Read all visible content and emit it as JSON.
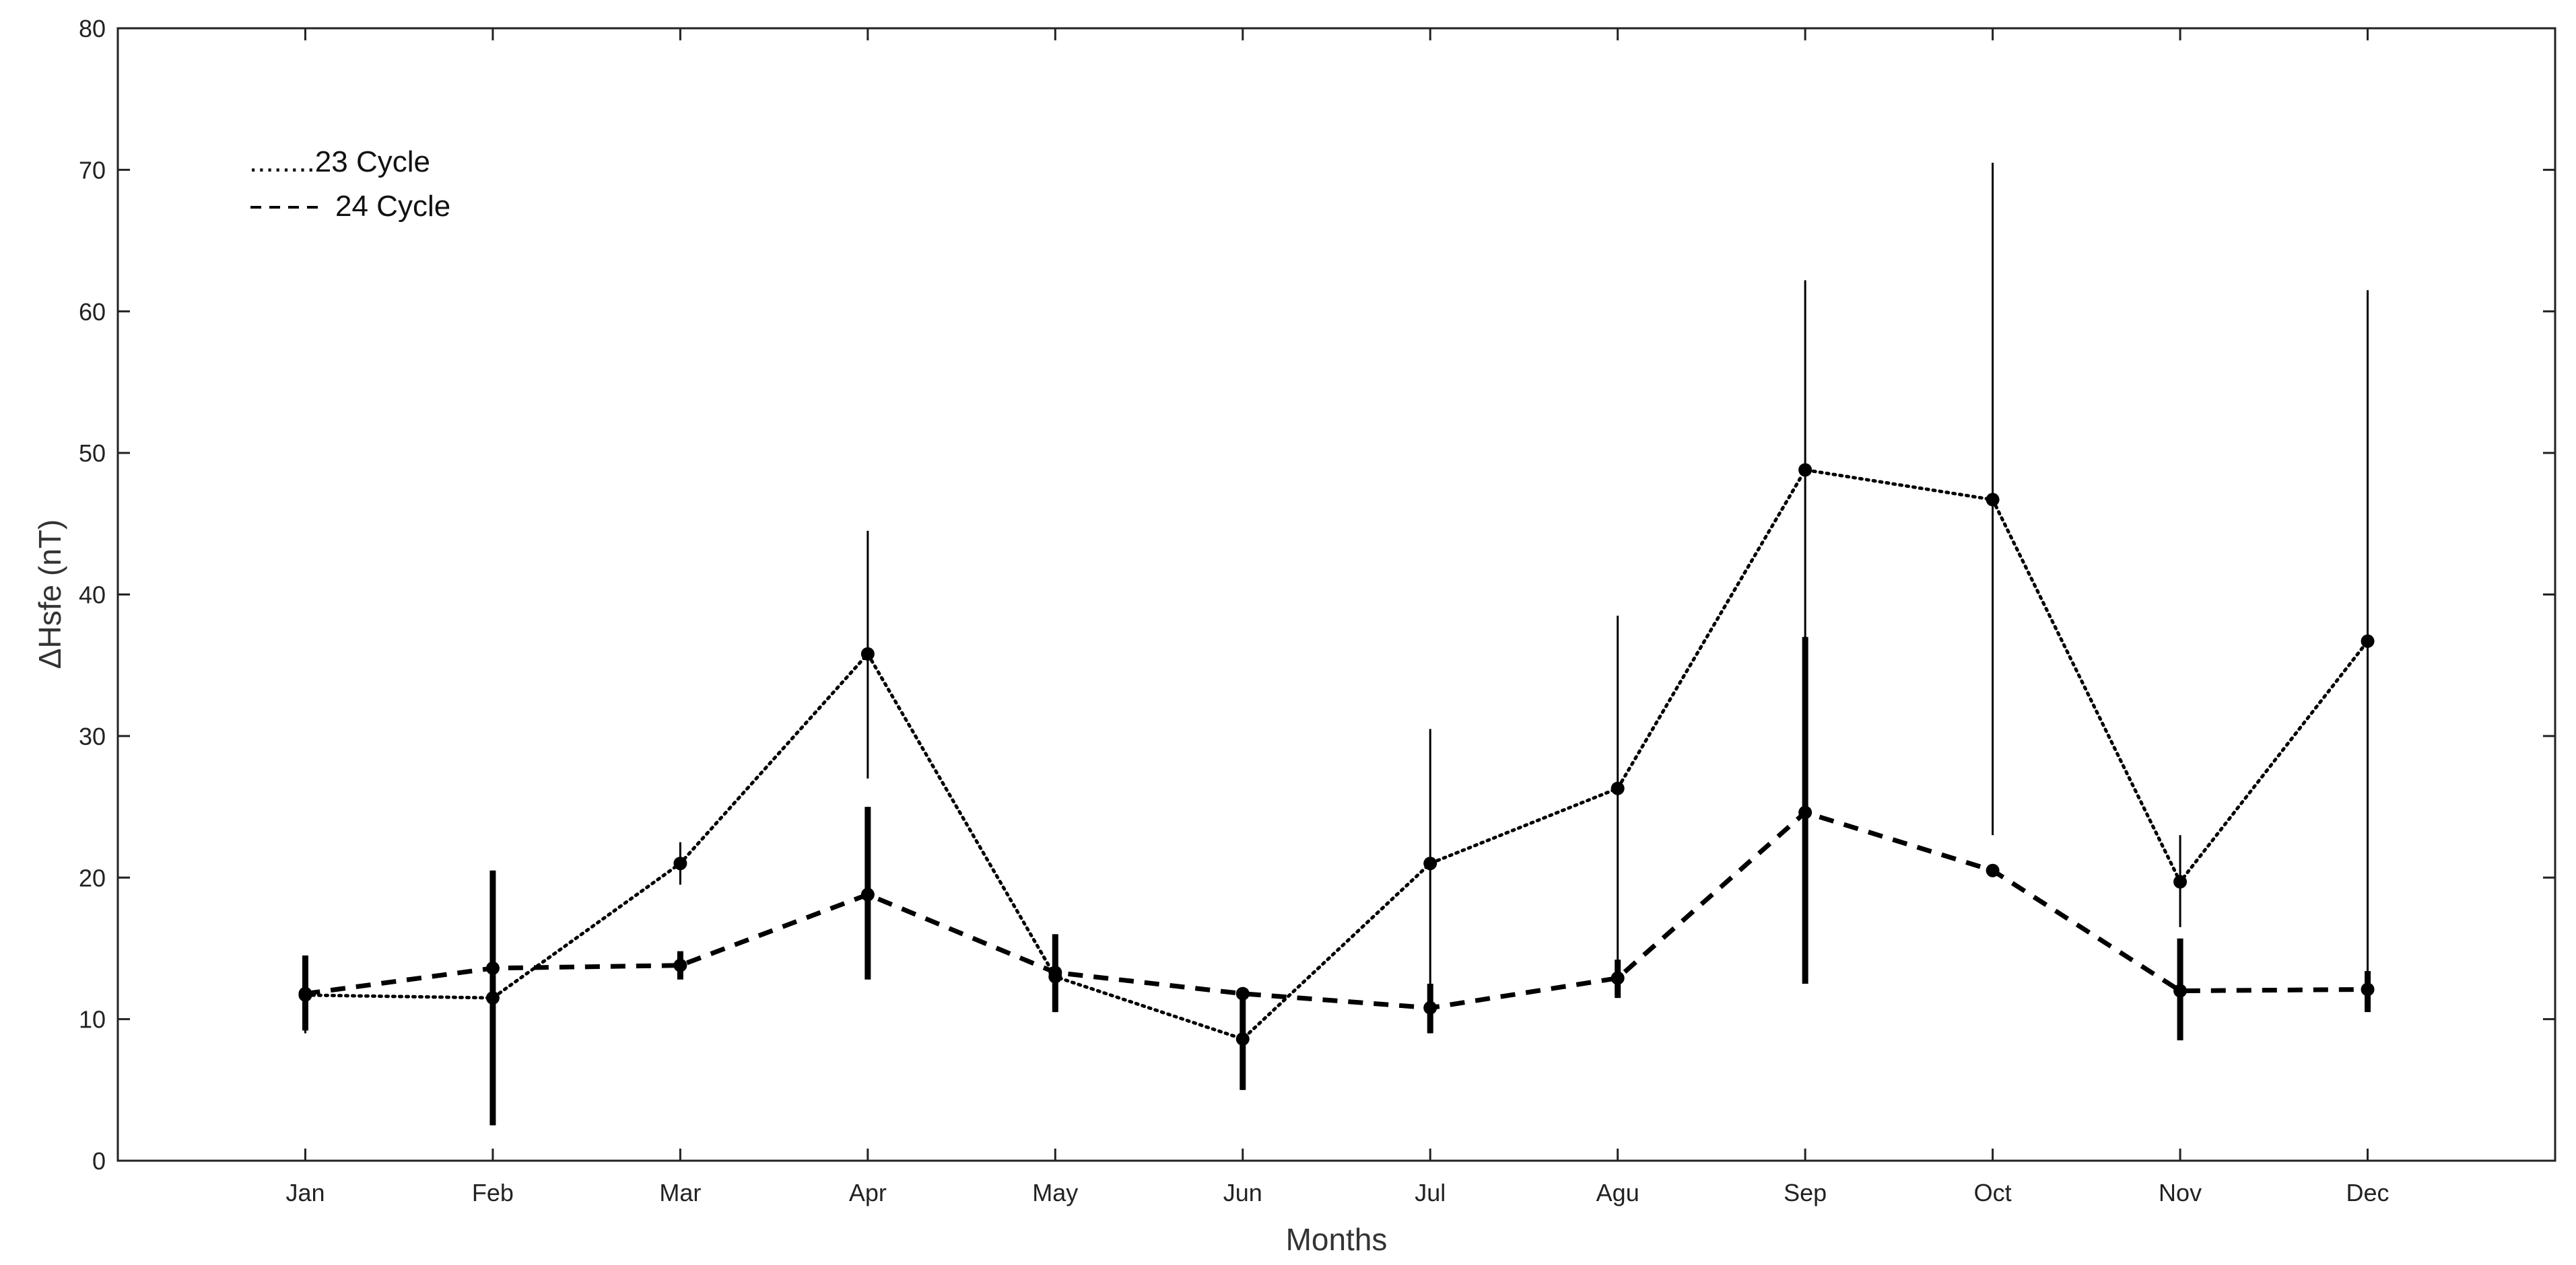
{
  "chart_data": {
    "type": "line",
    "title": "",
    "xlabel": "Months",
    "ylabel": "ΔHsfe  (nT)",
    "ylim": [
      0,
      80
    ],
    "yticks": [
      0,
      10,
      20,
      30,
      40,
      50,
      60,
      70,
      80
    ],
    "categories": [
      "Jan",
      "Feb",
      "Mar",
      "Apr",
      "May",
      "Jun",
      "Jul",
      "Agu",
      "Sep",
      "Oct",
      "Nov",
      "Dec"
    ],
    "grid": false,
    "legend_position": "top-left",
    "series": [
      {
        "name": "23 Cycle",
        "legend_label": "........23 Cycle",
        "style": "dotted",
        "color": "#000000",
        "values": [
          11.7,
          11.5,
          21.0,
          35.8,
          13.0,
          8.6,
          21.0,
          26.3,
          48.8,
          46.7,
          19.7,
          36.7
        ],
        "err_low": [
          9.0,
          2.5,
          19.5,
          27.0,
          10.5,
          5.0,
          9.0,
          11.5,
          12.5,
          23.0,
          16.5,
          12.0
        ],
        "err_high": [
          14.5,
          20.5,
          22.5,
          44.5,
          16.0,
          12.0,
          30.5,
          38.5,
          62.2,
          70.5,
          23.0,
          61.5
        ]
      },
      {
        "name": "24 Cycle",
        "legend_label": "24 Cycle",
        "style": "dashed",
        "color": "#000000",
        "values": [
          11.8,
          13.6,
          13.8,
          18.8,
          13.3,
          11.8,
          10.8,
          12.9,
          24.6,
          20.5,
          12.0,
          12.1
        ],
        "err_low": [
          9.2,
          2.5,
          12.8,
          12.8,
          10.5,
          5.0,
          9.0,
          11.5,
          12.5,
          20.5,
          8.5,
          10.5
        ],
        "err_high": [
          14.5,
          20.5,
          14.8,
          25.0,
          16.0,
          12.0,
          12.5,
          14.2,
          37.0,
          20.5,
          15.7,
          13.4
        ]
      }
    ]
  }
}
